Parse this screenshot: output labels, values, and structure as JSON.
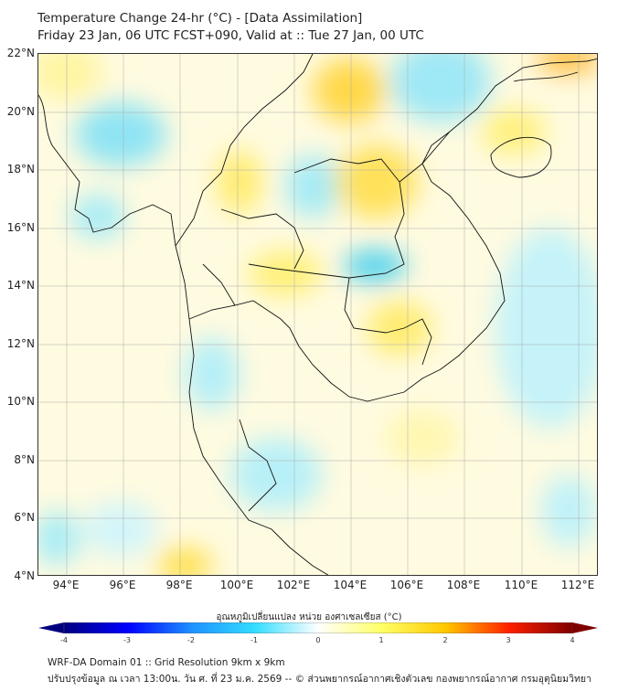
{
  "header": {
    "title": "Temperature Change 24-hr (°C) - [Data Assimilation]",
    "subtitle": "Friday 23 Jan, 06 UTC FCST+090, Valid at :: Tue 27 Jan, 00 UTC"
  },
  "map": {
    "lat_labels": [
      "22°N",
      "20°N",
      "18°N",
      "16°N",
      "14°N",
      "12°N",
      "10°N",
      "8°N",
      "6°N",
      "4°N"
    ],
    "lon_labels": [
      "94°E",
      "96°E",
      "98°E",
      "100°E",
      "102°E",
      "104°E",
      "106°E",
      "108°E",
      "110°E",
      "112°E"
    ]
  },
  "colorbar": {
    "title": "อุณหภูมิเปลี่ยนแปลง หน่วย องศาเซลเซียส (°C)",
    "ticks": [
      "-4",
      "-3",
      "-2",
      "-1",
      "0",
      "1",
      "2",
      "3",
      "4"
    ],
    "colors": [
      "#00007f",
      "#0000ff",
      "#1e90ff",
      "#33ddff",
      "#ffffff",
      "#ffff66",
      "#ffc800",
      "#ff2000",
      "#7f0000"
    ]
  },
  "footer": {
    "line1": "WRF-DA Domain 01 :: Grid Resolution 9km x 9km",
    "line2": "ปรับปรุงข้อมูล ณ เวลา 13:00น. วัน ศ. ที่ 23 ม.ค. 2569 -- © ส่วนพยากรณ์อากาศเชิงตัวเลข กองพยากรณ์อากาศ กรมอุตุนิยมวิทยา"
  }
}
